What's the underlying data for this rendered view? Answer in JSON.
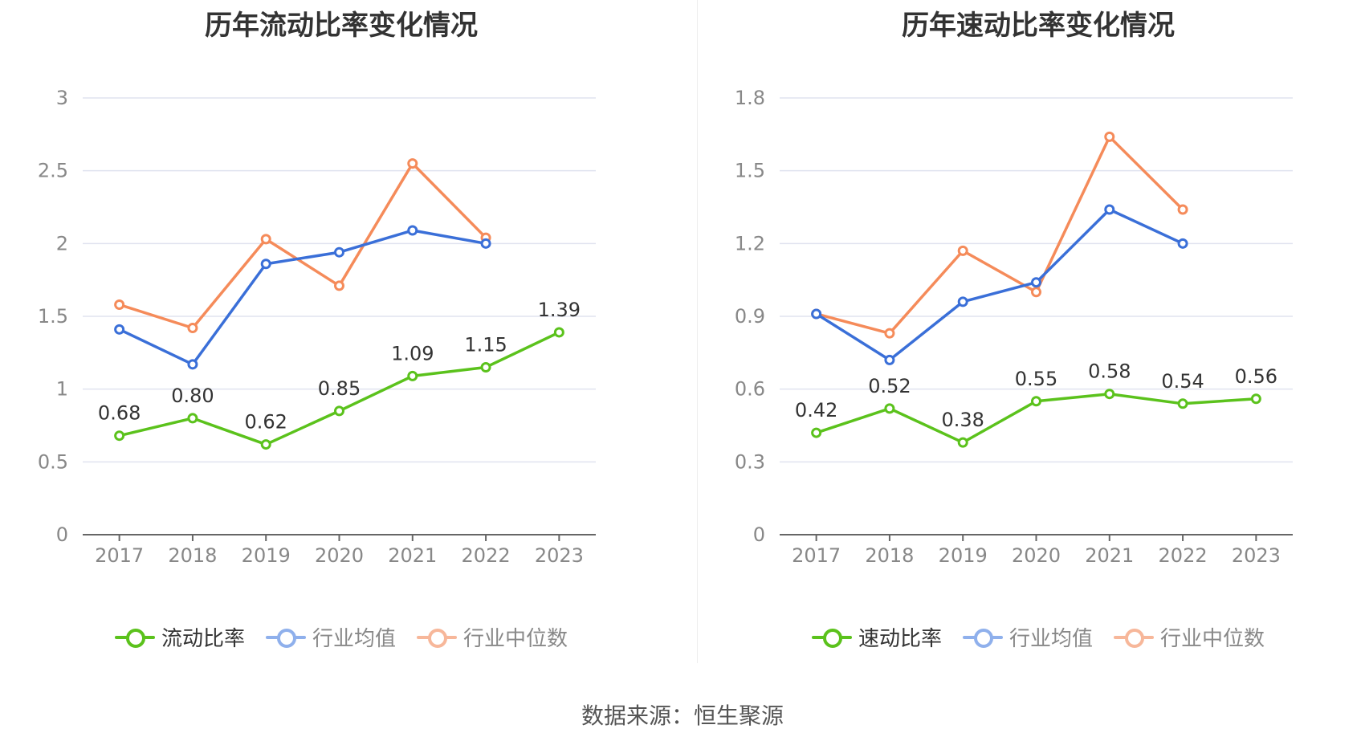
{
  "footer": {
    "source": "数据来源：恒生聚源"
  },
  "colors": {
    "main": "#5bc21c",
    "avg": "#3a6fd8",
    "median": "#f58b5a",
    "grid": "#e0e3ef",
    "axis": "#666666"
  },
  "chart_data": [
    {
      "type": "line",
      "title": "历年流动比率变化情况",
      "categories": [
        "2017",
        "2018",
        "2019",
        "2020",
        "2021",
        "2022",
        "2023"
      ],
      "ylim": [
        0,
        3
      ],
      "yticks": [
        "0",
        "0.5",
        "1",
        "1.5",
        "2",
        "2.5",
        "3"
      ],
      "grid": true,
      "legend_position": "bottom",
      "series": [
        {
          "name": "流动比率",
          "color": "#5bc21c",
          "values": [
            0.68,
            0.8,
            0.62,
            0.85,
            1.09,
            1.15,
            1.39
          ],
          "labels": [
            "0.68",
            "0.80",
            "0.62",
            "0.85",
            "1.09",
            "1.15",
            "1.39"
          ]
        },
        {
          "name": "行业均值",
          "color": "#3a6fd8",
          "values": [
            1.41,
            1.17,
            1.86,
            1.94,
            2.09,
            2.0,
            null
          ]
        },
        {
          "name": "行业中位数",
          "color": "#f58b5a",
          "values": [
            1.58,
            1.42,
            2.03,
            1.71,
            2.55,
            2.04,
            null
          ]
        }
      ]
    },
    {
      "type": "line",
      "title": "历年速动比率变化情况",
      "categories": [
        "2017",
        "2018",
        "2019",
        "2020",
        "2021",
        "2022",
        "2023"
      ],
      "ylim": [
        0,
        1.8
      ],
      "yticks": [
        "0",
        "0.3",
        "0.6",
        "0.9",
        "1.2",
        "1.5",
        "1.8"
      ],
      "grid": true,
      "legend_position": "bottom",
      "series": [
        {
          "name": "速动比率",
          "color": "#5bc21c",
          "values": [
            0.42,
            0.52,
            0.38,
            0.55,
            0.58,
            0.54,
            0.56
          ],
          "labels": [
            "0.42",
            "0.52",
            "0.38",
            "0.55",
            "0.58",
            "0.54",
            "0.56"
          ]
        },
        {
          "name": "行业均值",
          "color": "#3a6fd8",
          "values": [
            0.91,
            0.72,
            0.96,
            1.04,
            1.34,
            1.2,
            null
          ]
        },
        {
          "name": "行业中位数",
          "color": "#f58b5a",
          "values": [
            0.91,
            0.83,
            1.17,
            1.0,
            1.64,
            1.34,
            null
          ]
        }
      ]
    }
  ]
}
